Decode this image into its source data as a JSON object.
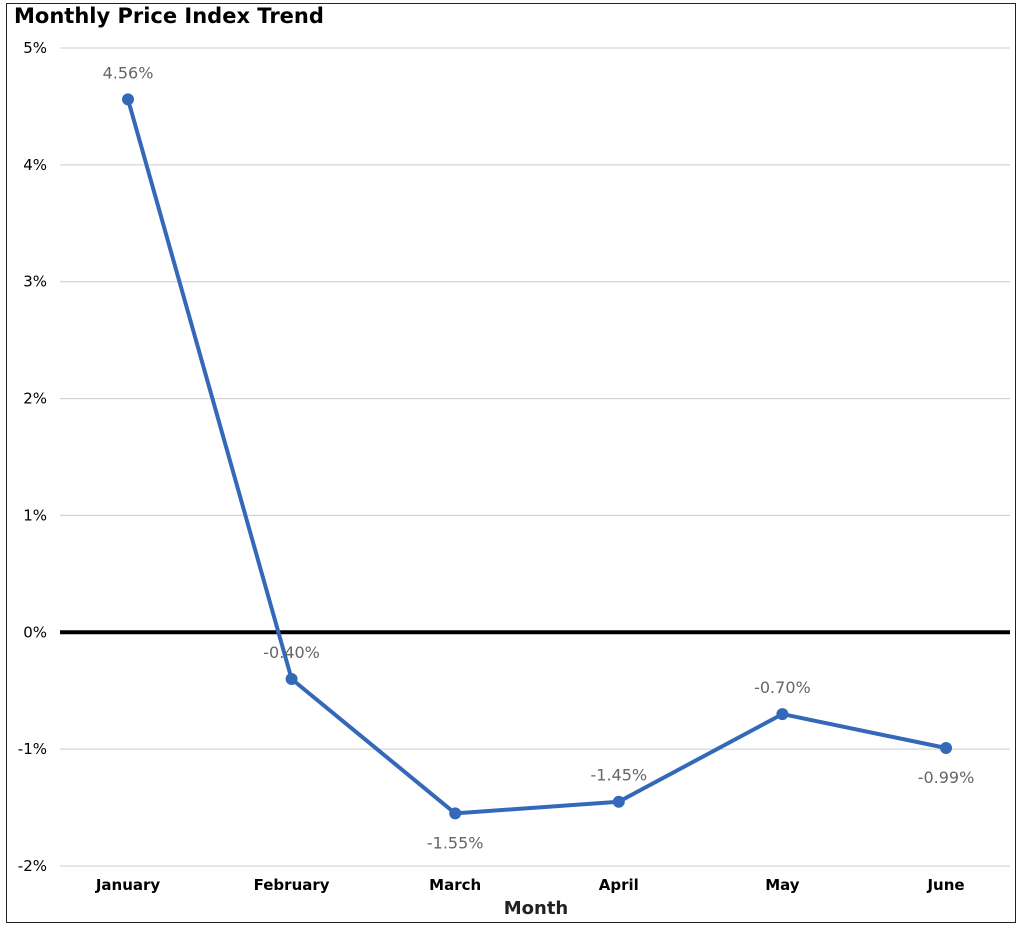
{
  "chart_data": {
    "type": "line",
    "title": "Monthly Price Index Trend",
    "xlabel": "Month",
    "ylabel": "",
    "categories": [
      "January",
      "February",
      "March",
      "April",
      "May",
      "June"
    ],
    "values": [
      4.56,
      -0.4,
      -1.55,
      -1.45,
      -0.7,
      -0.99
    ],
    "data_labels": [
      "4.56%",
      "-0.40%",
      "-1.55%",
      "-1.45%",
      "-0.70%",
      "-0.99%"
    ],
    "label_position": [
      "above",
      "above",
      "below",
      "above",
      "above",
      "below"
    ],
    "yticks": [
      -2,
      -1,
      0,
      1,
      2,
      3,
      4,
      5
    ],
    "ytick_labels": [
      "-2%",
      "-1%",
      "0%",
      "1%",
      "2%",
      "3%",
      "4%",
      "5%"
    ],
    "ylim": [
      -2,
      5
    ],
    "grid": true,
    "zero_line": true,
    "legend": "none",
    "colors": {
      "series": "#3468B8",
      "zero_line": "#000000",
      "grid": "#CCCCCC",
      "data_label": "#666666"
    }
  }
}
